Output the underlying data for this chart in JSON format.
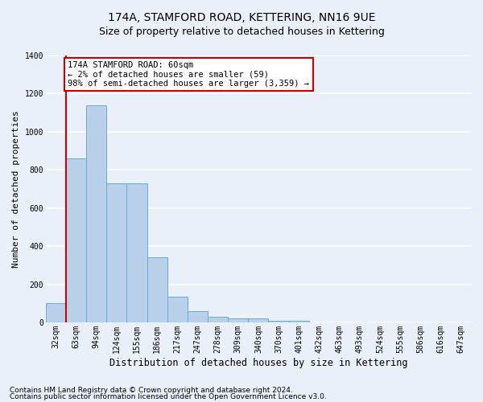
{
  "title": "174A, STAMFORD ROAD, KETTERING, NN16 9UE",
  "subtitle": "Size of property relative to detached houses in Kettering",
  "xlabel": "Distribution of detached houses by size in Kettering",
  "ylabel": "Number of detached properties",
  "categories": [
    "32sqm",
    "63sqm",
    "94sqm",
    "124sqm",
    "155sqm",
    "186sqm",
    "217sqm",
    "247sqm",
    "278sqm",
    "309sqm",
    "340sqm",
    "370sqm",
    "401sqm",
    "432sqm",
    "463sqm",
    "493sqm",
    "524sqm",
    "555sqm",
    "586sqm",
    "616sqm",
    "647sqm"
  ],
  "values": [
    100,
    860,
    1140,
    730,
    730,
    340,
    135,
    60,
    30,
    20,
    20,
    10,
    10,
    0,
    0,
    0,
    0,
    0,
    0,
    0,
    0
  ],
  "bar_color": "#b8d0ea",
  "bar_edgecolor": "#6aaad4",
  "annotation_text": "174A STAMFORD ROAD: 60sqm\n← 2% of detached houses are smaller (59)\n98% of semi-detached houses are larger (3,359) →",
  "annotation_box_facecolor": "#ffffff",
  "annotation_box_edgecolor": "#cc0000",
  "vline_color": "#cc0000",
  "vline_x": 0.5,
  "ylim": [
    0,
    1400
  ],
  "yticks": [
    0,
    200,
    400,
    600,
    800,
    1000,
    1200,
    1400
  ],
  "background_color": "#eaf0f9",
  "grid_color": "#ffffff",
  "footer_line1": "Contains HM Land Registry data © Crown copyright and database right 2024.",
  "footer_line2": "Contains public sector information licensed under the Open Government Licence v3.0.",
  "title_fontsize": 10,
  "subtitle_fontsize": 9,
  "xlabel_fontsize": 8.5,
  "ylabel_fontsize": 8,
  "tick_fontsize": 7,
  "annotation_fontsize": 7.5,
  "footer_fontsize": 6.5
}
